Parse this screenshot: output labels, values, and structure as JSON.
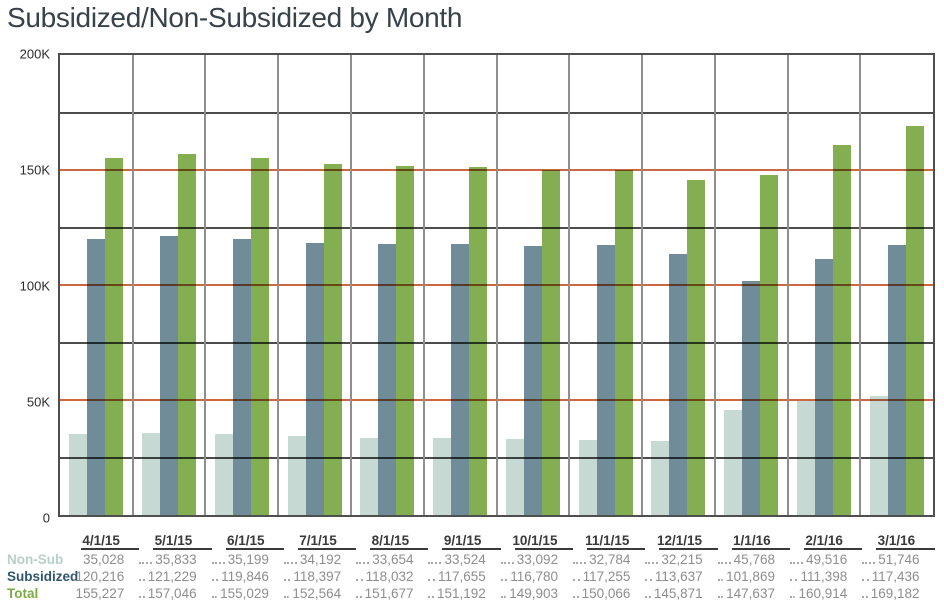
{
  "title": "Subsidized/Non-Subsidized by Month",
  "colors": {
    "title_text": "#37424b",
    "axis_text": "#2b2b2b",
    "plot_border": "#4f4f4f",
    "gridline_horizontal": "#4c4c4c",
    "gridline_vertical": "#8f8f8f",
    "reference_line": "#cb6741",
    "table_header_text": "#3a3a3a",
    "table_value_text": "#8e8e8e",
    "leader_dots": "#a8a8a8",
    "non_sub": "#c6d9d3",
    "subsidized": "#6f8c98",
    "total": "#84ae52"
  },
  "y_axis": {
    "tick_labels": [
      "200K",
      "150K",
      "100K",
      "50K",
      "0"
    ],
    "tick_values": [
      200000,
      150000,
      100000,
      50000,
      0
    ],
    "minor_gridline_values": [
      175000,
      125000,
      75000,
      25000
    ],
    "reference_line_values": [
      150000,
      100000,
      50000
    ]
  },
  "chart_data": {
    "type": "bar",
    "title": "Subsidized/Non-Subsidized by Month",
    "categories": [
      "4/1/15",
      "5/1/15",
      "6/1/15",
      "7/1/15",
      "8/1/15",
      "9/1/15",
      "10/1/15",
      "11/1/15",
      "12/1/15",
      "1/1/16",
      "2/1/16",
      "3/1/16"
    ],
    "series": [
      {
        "name": "Non-Sub",
        "key": "non_sub",
        "color": "#c6d9d3",
        "values": [
          35028,
          35833,
          35199,
          34192,
          33654,
          33524,
          33092,
          32784,
          32215,
          45768,
          49516,
          51746
        ]
      },
      {
        "name": "Subsidized",
        "key": "subsidized",
        "color": "#6f8c98",
        "values": [
          120216,
          121229,
          119846,
          118397,
          118032,
          117655,
          116780,
          117255,
          113637,
          101869,
          111398,
          117436
        ]
      },
      {
        "name": "Total",
        "key": "total",
        "color": "#84ae52",
        "values": [
          155227,
          157046,
          155029,
          152564,
          151677,
          151192,
          149903,
          150066,
          145871,
          147637,
          160914,
          169182
        ]
      }
    ],
    "xlabel": "",
    "ylabel": "",
    "ylim": [
      0,
      200000
    ],
    "grid": true,
    "legend_position": "bottom-table",
    "table_row_label_colors": {
      "non_sub": "#b7cec9",
      "subsidized": "#30566b",
      "total": "#7caa45"
    }
  }
}
